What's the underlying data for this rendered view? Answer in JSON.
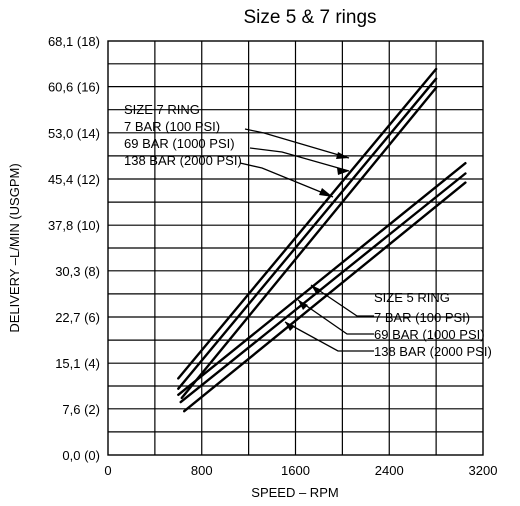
{
  "chart_data": {
    "type": "line",
    "title": "Size 5 & 7 rings",
    "xlabel": "SPEED – RPM",
    "ylabel": "DELIVERY –L/MIN (USGPM)",
    "xlim": [
      0,
      3200
    ],
    "ylim": [
      0,
      68.1
    ],
    "x_ticks": [
      0,
      800,
      1600,
      2400,
      3200
    ],
    "x_tick_labels": [
      "0",
      "800",
      "1600",
      "2400",
      "3200"
    ],
    "y_ticks": [
      0,
      7.6,
      15.1,
      22.7,
      30.3,
      37.8,
      45.4,
      53.0,
      60.6,
      68.1
    ],
    "y_tick_labels": [
      "0,0 (0)",
      "7,6 (2)",
      "15,1 (4)",
      "22,7 (6)",
      "30,3 (8)",
      "37,8 (10)",
      "45,4 (12)",
      "53,0 (14)",
      "60,6 (16)",
      "68,1 (18)"
    ],
    "grid": true,
    "annotations": [
      {
        "group": "SIZE 7 RING",
        "labels": [
          "7 BAR (100 PSI)",
          "69 BAR (1000 PSI)",
          "138 BAR (2000 PSI)"
        ]
      },
      {
        "group": "SIZE 5 RING",
        "labels": [
          "7 BAR (100 PSI)",
          "69 BAR (1000 PSI)",
          "138 BAR (2000 PSI)"
        ]
      }
    ],
    "series": [
      {
        "ring": "SIZE 7 RING",
        "pressure": "7 BAR (100 PSI)",
        "x": [
          600,
          2800
        ],
        "y": [
          12.6,
          63.5
        ]
      },
      {
        "ring": "SIZE 7 RING",
        "pressure": "69 BAR (1000 PSI)",
        "x": [
          600,
          2800
        ],
        "y": [
          10.9,
          61.9
        ]
      },
      {
        "ring": "SIZE 7 RING",
        "pressure": "138 BAR (2000 PSI)",
        "x": [
          630,
          2800
        ],
        "y": [
          9.4,
          60.4
        ]
      },
      {
        "ring": "SIZE 5 RING",
        "pressure": "7 BAR (100 PSI)",
        "x": [
          600,
          3050
        ],
        "y": [
          9.9,
          48.0
        ]
      },
      {
        "ring": "SIZE 5 RING",
        "pressure": "69 BAR (1000 PSI)",
        "x": [
          620,
          3050
        ],
        "y": [
          8.7,
          46.3
        ]
      },
      {
        "ring": "SIZE 5 RING",
        "pressure": "138 BAR (2000 PSI)",
        "x": [
          650,
          3050
        ],
        "y": [
          7.2,
          44.8
        ]
      }
    ]
  }
}
